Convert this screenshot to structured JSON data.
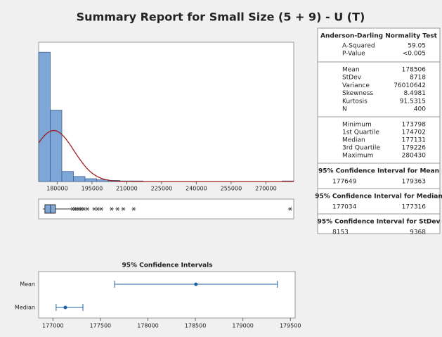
{
  "title": "Summary Report for Small Size (5 + 9) - U (T)",
  "chart_data": [
    {
      "type": "histogram",
      "bins": [
        172000,
        177000,
        182000,
        187000,
        192000,
        197000,
        202000,
        207000,
        212000,
        217000,
        222000,
        227000,
        232000,
        237000,
        242000,
        247000,
        252000,
        257000,
        262000,
        267000,
        272000,
        277000,
        282000
      ],
      "values": [
        232,
        128,
        18,
        9,
        5,
        3,
        2,
        1,
        1,
        0,
        0,
        0,
        0,
        0,
        0,
        0,
        0,
        0,
        0,
        0,
        0,
        1
      ],
      "color": "#7ea6d6",
      "fit_color": "#a31f1f",
      "xlim": [
        172000,
        282000
      ],
      "xticks": [
        180000,
        195000,
        210000,
        225000,
        240000,
        255000,
        270000
      ],
      "ylim": [
        0,
        250
      ]
    },
    {
      "type": "boxplot",
      "whisker_high": 186000,
      "color": "#7ea6d6",
      "outliers": [
        186500,
        187500,
        188200,
        189000,
        189800,
        190500,
        191500,
        193000,
        196000,
        197500,
        199000,
        203500,
        206000,
        208500,
        213000,
        280430
      ]
    },
    {
      "type": "interval",
      "title": "95% Confidence Intervals",
      "categories": [
        "Mean",
        "Median"
      ],
      "color": "#1f5fa8",
      "xlim": [
        176850,
        179550
      ],
      "xticks": [
        177000,
        177500,
        178000,
        178500,
        179000,
        179500
      ]
    }
  ],
  "stats": {
    "ad_title": "Anderson-Darling Normality Test",
    "ad": [
      {
        "label": "A-Squared",
        "value": 59.05
      },
      {
        "label": "P-Value",
        "value": "<0.005"
      }
    ],
    "desc": [
      {
        "label": "Mean",
        "value": 178506
      },
      {
        "label": "StDev",
        "value": 8718
      },
      {
        "label": "Variance",
        "value": 76010642
      },
      {
        "label": "Skewness",
        "value": 8.4981
      },
      {
        "label": "Kurtosis",
        "value": 91.5315
      },
      {
        "label": "N",
        "value": 400
      }
    ],
    "quart": [
      {
        "label": "Minimum",
        "value": 173798
      },
      {
        "label": "1st Quartile",
        "value": 174702
      },
      {
        "label": "Median",
        "value": 177131
      },
      {
        "label": "3rd Quartile",
        "value": 179226
      },
      {
        "label": "Maximum",
        "value": 280430
      }
    ],
    "ci": [
      {
        "title": "95% Confidence Interval for Mean",
        "low": 177649,
        "high": 179363
      },
      {
        "title": "95% Confidence Interval for Median",
        "low": 177034,
        "high": 177316
      },
      {
        "title": "95% Confidence Interval for StDev",
        "low": 8153,
        "high": 9368
      }
    ]
  }
}
